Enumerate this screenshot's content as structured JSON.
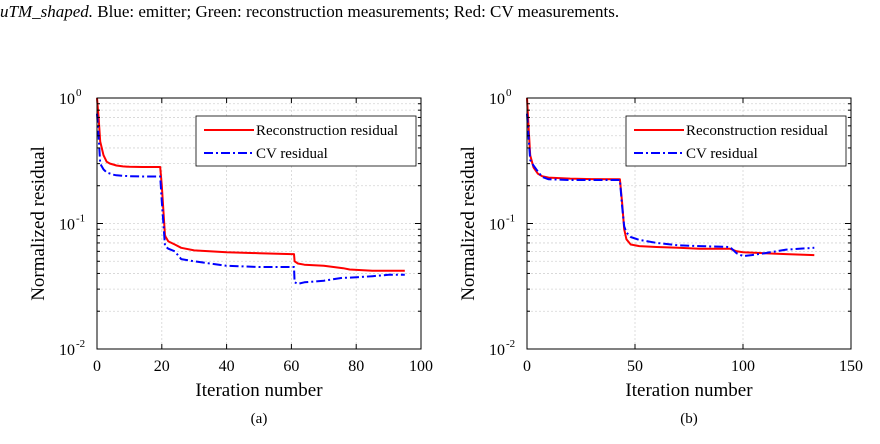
{
  "caption": {
    "italic": "uTM_shaped.",
    "text": " Blue: emitter; Green: reconstruction measurements; Red: CV measurements."
  },
  "colors": {
    "reconstruction": "#ff0000",
    "cv": "#0000ff",
    "grid": "#d4d4d4",
    "axis": "#000000"
  },
  "chart_data": [
    {
      "type": "line",
      "subplot_label": "(a)",
      "xlabel": "Iteration number",
      "ylabel": "Normalized residual",
      "xlim": [
        0,
        100
      ],
      "ylim": [
        0.01,
        1
      ],
      "yscale": "log",
      "xticks": [
        0,
        20,
        40,
        60,
        80,
        100
      ],
      "yticks": [
        {
          "value": 1,
          "label": "10",
          "exp": "0"
        },
        {
          "value": 0.1,
          "label": "10",
          "exp": "-1"
        },
        {
          "value": 0.01,
          "label": "10",
          "exp": "-2"
        }
      ],
      "grid": true,
      "legend_position": "top-right",
      "series": [
        {
          "name": "Reconstruction residual",
          "style": "solid",
          "x": [
            0,
            0.5,
            1,
            2,
            3,
            4,
            5,
            6,
            8,
            10,
            14,
            19.5,
            20,
            21,
            22,
            24,
            26,
            30,
            40,
            50,
            60,
            60.8,
            61,
            62,
            64,
            70,
            76,
            78,
            85,
            90,
            95
          ],
          "y": [
            1.0,
            0.7,
            0.45,
            0.35,
            0.31,
            0.3,
            0.295,
            0.29,
            0.285,
            0.283,
            0.282,
            0.282,
            0.2,
            0.08,
            0.072,
            0.068,
            0.064,
            0.061,
            0.059,
            0.058,
            0.057,
            0.057,
            0.05,
            0.048,
            0.047,
            0.046,
            0.044,
            0.043,
            0.042,
            0.042,
            0.042
          ]
        },
        {
          "name": "CV residual",
          "style": "dashdot",
          "x": [
            0,
            0.5,
            1,
            2,
            3,
            4,
            5,
            6,
            8,
            10,
            14,
            19.5,
            20,
            21,
            22,
            24,
            26,
            30,
            40,
            50,
            60,
            60.8,
            61,
            62,
            64,
            70,
            76,
            78,
            85,
            90,
            95
          ],
          "y": [
            0.75,
            0.5,
            0.3,
            0.27,
            0.255,
            0.25,
            0.245,
            0.242,
            0.24,
            0.238,
            0.237,
            0.237,
            0.15,
            0.066,
            0.063,
            0.06,
            0.052,
            0.05,
            0.046,
            0.045,
            0.045,
            0.045,
            0.034,
            0.033,
            0.034,
            0.035,
            0.037,
            0.037,
            0.038,
            0.039,
            0.039
          ]
        }
      ]
    },
    {
      "type": "line",
      "subplot_label": "(b)",
      "xlabel": "Iteration number",
      "ylabel": "Normalized residual",
      "xlim": [
        0,
        150
      ],
      "ylim": [
        0.01,
        1
      ],
      "yscale": "log",
      "xticks": [
        0,
        50,
        100,
        150
      ],
      "yticks": [
        {
          "value": 1,
          "label": "10",
          "exp": "0"
        },
        {
          "value": 0.1,
          "label": "10",
          "exp": "-1"
        },
        {
          "value": 0.01,
          "label": "10",
          "exp": "-2"
        }
      ],
      "grid": true,
      "legend_position": "top-right",
      "series": [
        {
          "name": "Reconstruction residual",
          "style": "solid",
          "x": [
            0,
            0.7,
            1.5,
            3,
            5,
            7,
            10,
            20,
            30,
            43,
            44,
            45,
            46,
            48,
            52,
            60,
            70,
            80,
            94,
            97,
            100,
            110,
            120,
            133
          ],
          "y": [
            1.0,
            0.6,
            0.35,
            0.28,
            0.25,
            0.238,
            0.232,
            0.228,
            0.226,
            0.225,
            0.15,
            0.09,
            0.075,
            0.068,
            0.066,
            0.065,
            0.064,
            0.063,
            0.063,
            0.06,
            0.059,
            0.058,
            0.057,
            0.056
          ]
        },
        {
          "name": "CV residual",
          "style": "dashdot",
          "x": [
            0,
            0.7,
            1.5,
            3,
            5,
            7,
            10,
            20,
            30,
            43,
            44,
            45,
            46,
            48,
            52,
            60,
            70,
            80,
            94,
            97,
            100,
            104,
            110,
            120,
            133
          ],
          "y": [
            0.75,
            0.5,
            0.32,
            0.29,
            0.26,
            0.235,
            0.225,
            0.222,
            0.222,
            0.222,
            0.14,
            0.095,
            0.085,
            0.078,
            0.074,
            0.07,
            0.067,
            0.066,
            0.065,
            0.058,
            0.055,
            0.056,
            0.058,
            0.062,
            0.064
          ]
        }
      ]
    }
  ]
}
